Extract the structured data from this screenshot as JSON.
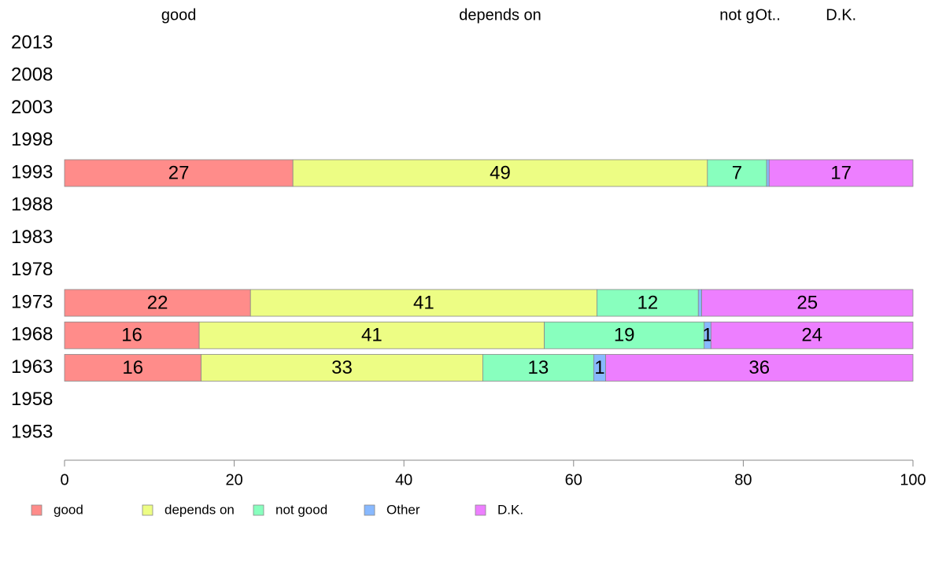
{
  "colors": {
    "good": "#ff8c8a",
    "depends_on": "#edfd84",
    "not_good": "#88ffbe",
    "other": "#88b9ff",
    "dk": "#ed7fff",
    "axis": "#888888",
    "bar_border": "#888888"
  },
  "chart_data": {
    "type": "bar",
    "orientation": "horizontal",
    "stacked": true,
    "categories": [
      "2013",
      "2008",
      "2003",
      "1998",
      "1993",
      "1988",
      "1983",
      "1978",
      "1973",
      "1968",
      "1963",
      "1958",
      "1953"
    ],
    "series": [
      {
        "name": "good",
        "key": "good",
        "values": [
          null,
          null,
          null,
          null,
          27,
          null,
          null,
          null,
          22,
          16,
          16,
          null,
          null
        ]
      },
      {
        "name": "depends on",
        "key": "depends_on",
        "values": [
          null,
          null,
          null,
          null,
          49,
          null,
          null,
          null,
          41,
          41,
          33,
          null,
          null
        ]
      },
      {
        "name": "not good",
        "key": "not_good",
        "values": [
          null,
          null,
          null,
          null,
          7,
          null,
          null,
          null,
          12,
          19,
          13,
          null,
          null
        ]
      },
      {
        "name": "Other",
        "key": "other",
        "values": [
          null,
          null,
          null,
          null,
          0.3,
          null,
          null,
          null,
          0.4,
          0.8,
          1.4,
          null,
          null
        ]
      },
      {
        "name": "D.K.",
        "key": "dk",
        "values": [
          null,
          null,
          null,
          null,
          17,
          null,
          null,
          null,
          25,
          24,
          36,
          null,
          null
        ]
      }
    ],
    "data_labels": {
      "1993": [
        "27",
        "49",
        "7",
        "",
        "17"
      ],
      "1973": [
        "22",
        "41",
        "12",
        "",
        "25"
      ],
      "1968": [
        "16",
        "41",
        "19",
        "1",
        "24"
      ],
      "1963": [
        "16",
        "33",
        "13",
        "1",
        "36"
      ]
    },
    "top_labels": [
      "good",
      "depends on",
      "not g",
      "Ot..",
      "D.K."
    ],
    "xlim": [
      0,
      100
    ],
    "xticks": [
      0,
      20,
      40,
      60,
      80,
      100
    ],
    "legend": [
      "good",
      "depends on",
      "not good",
      "Other",
      "D.K."
    ],
    "legend_position": "bottom-left",
    "grid": false,
    "title": "",
    "xlabel": "",
    "ylabel": ""
  }
}
